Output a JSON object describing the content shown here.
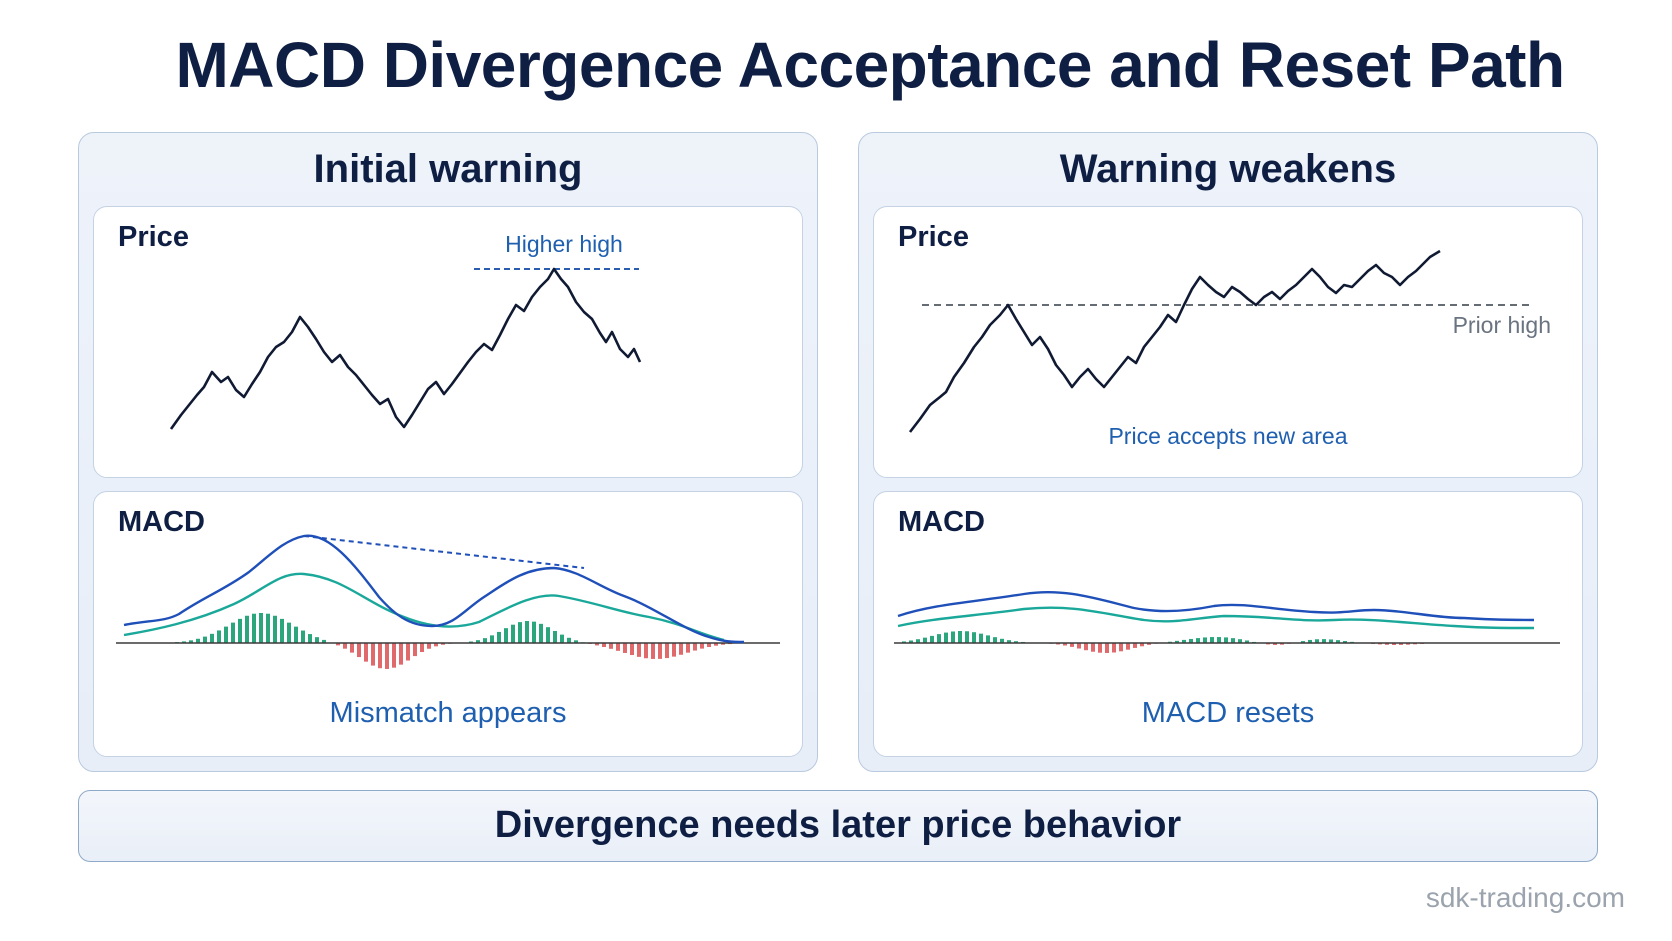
{
  "title": "MACD Divergence Acceptance and Reset Path",
  "panels": [
    {
      "title": "Initial warning",
      "price_label": "Price",
      "price_note": "Higher high",
      "macd_label": "MACD",
      "caption": "Mismatch appears"
    },
    {
      "title": "Warning weakens",
      "price_label": "Price",
      "price_note": "Prior high",
      "price_caption": "Price accepts new area",
      "macd_label": "MACD",
      "caption": "MACD resets"
    }
  ],
  "footer": "Divergence needs later price behavior",
  "watermark": "sdk-trading.com",
  "colors": {
    "text": "#0f1f44",
    "accent_blue": "#1f5fb0",
    "macd_line": "#1f4fb8",
    "signal_line": "#1aa89a",
    "hist_pos": "#2aa57c",
    "hist_neg": "#e0696b"
  }
}
